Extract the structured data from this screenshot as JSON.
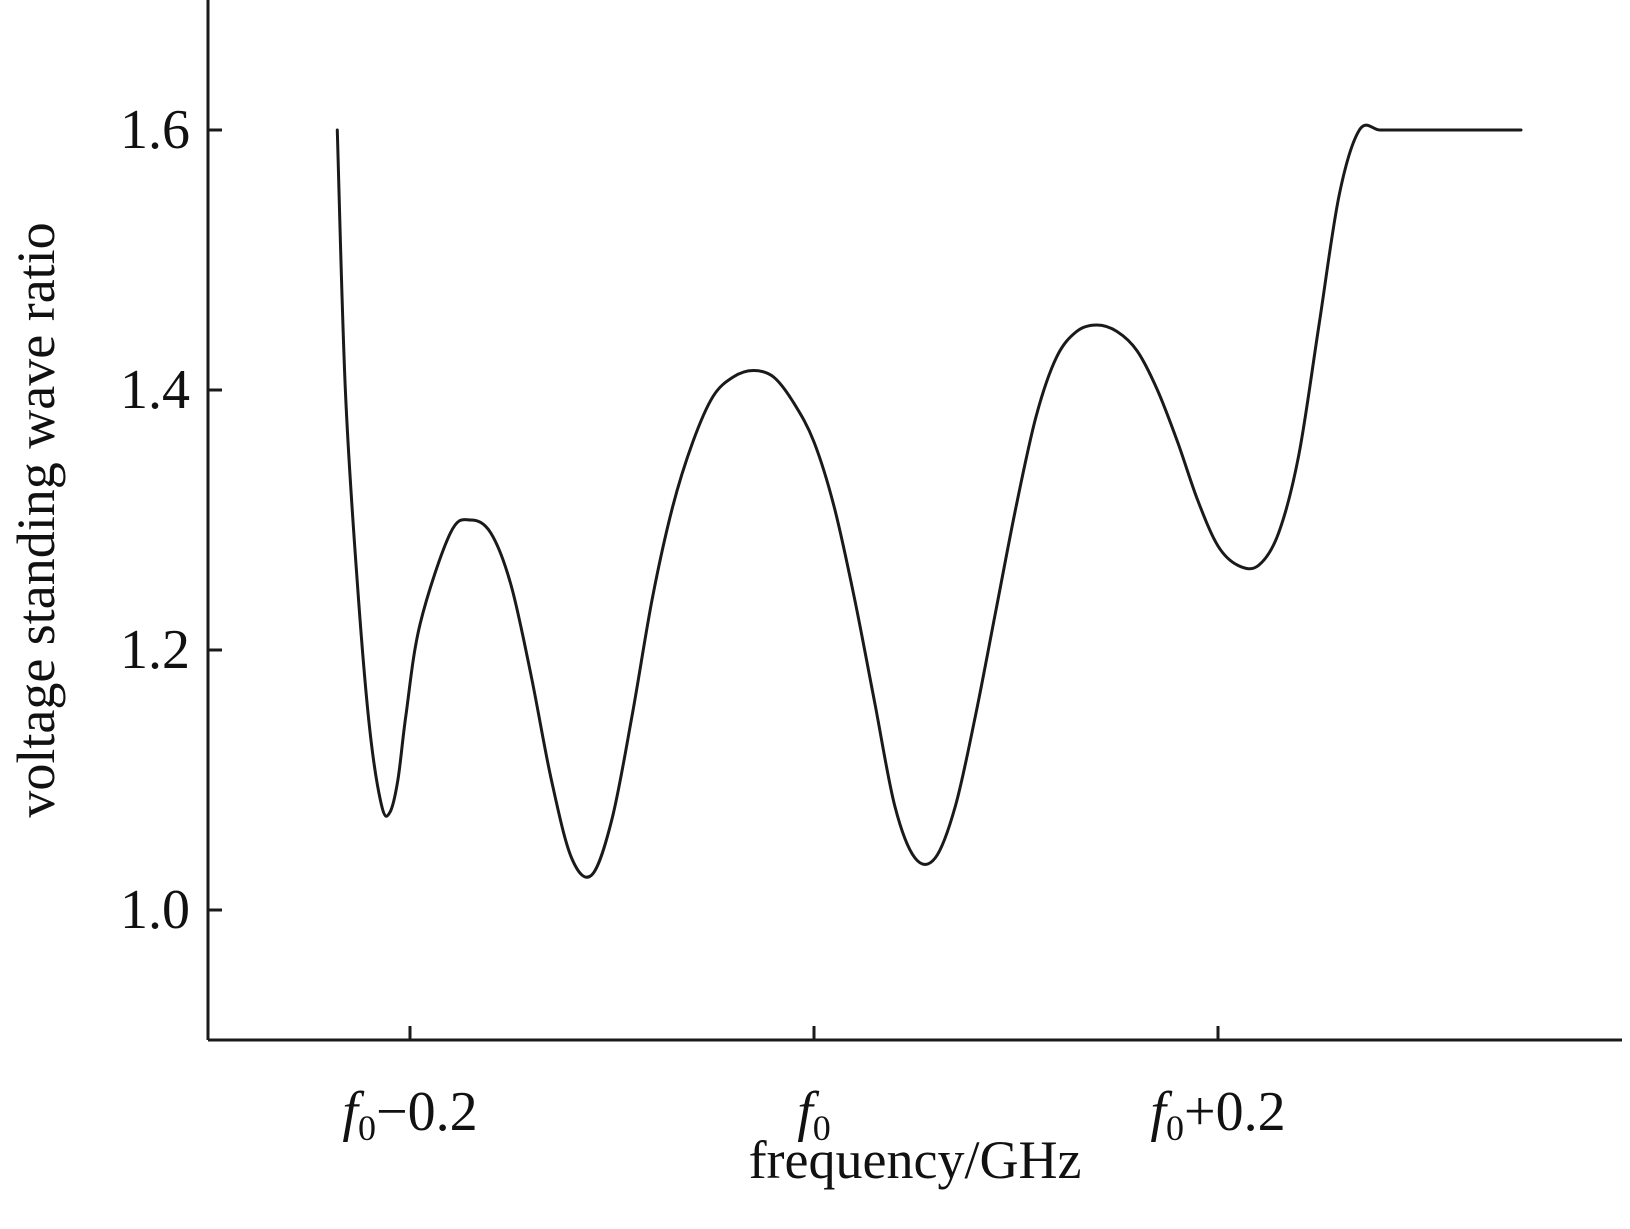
{
  "chart_data": {
    "type": "line",
    "title": "",
    "xlabel": "frequency/GHz",
    "ylabel": "voltage standing wave ratio",
    "xlim": [
      -0.3,
      0.4
    ],
    "ylim": [
      0.9,
      1.7
    ],
    "grid": false,
    "legend": "none",
    "xticks": [
      {
        "value": -0.2,
        "base": "f",
        "sub": "0",
        "suffix": "−0.2"
      },
      {
        "value": 0.0,
        "base": "f",
        "sub": "0",
        "suffix": ""
      },
      {
        "value": 0.2,
        "base": "f",
        "sub": "0",
        "suffix": "+0.2"
      }
    ],
    "yticks": [
      {
        "value": 1.0,
        "label": "1.0"
      },
      {
        "value": 1.2,
        "label": "1.2"
      },
      {
        "value": 1.4,
        "label": "1.4"
      },
      {
        "value": 1.6,
        "label": "1.6"
      }
    ],
    "series": [
      {
        "color": "#1a1a1a",
        "x": [
          -0.236,
          -0.232,
          -0.226,
          -0.22,
          -0.214,
          -0.21,
          -0.206,
          -0.202,
          -0.195,
          -0.18,
          -0.17,
          -0.16,
          -0.15,
          -0.14,
          -0.13,
          -0.12,
          -0.11,
          -0.1,
          -0.09,
          -0.08,
          -0.07,
          -0.06,
          -0.05,
          -0.04,
          -0.03,
          -0.02,
          -0.01,
          0.0,
          0.01,
          0.02,
          0.03,
          0.04,
          0.05,
          0.06,
          0.07,
          0.08,
          0.09,
          0.1,
          0.11,
          0.12,
          0.13,
          0.14,
          0.15,
          0.16,
          0.17,
          0.18,
          0.19,
          0.2,
          0.21,
          0.22,
          0.23,
          0.24,
          0.25,
          0.26,
          0.27,
          0.28,
          0.29,
          0.3,
          0.31,
          0.32,
          0.33,
          0.335,
          0.34,
          0.35
        ],
        "y": [
          1.6,
          1.4,
          1.25,
          1.14,
          1.08,
          1.075,
          1.1,
          1.15,
          1.22,
          1.29,
          1.3,
          1.29,
          1.25,
          1.18,
          1.1,
          1.04,
          1.027,
          1.07,
          1.15,
          1.24,
          1.31,
          1.36,
          1.395,
          1.41,
          1.415,
          1.41,
          1.39,
          1.36,
          1.31,
          1.24,
          1.16,
          1.08,
          1.04,
          1.04,
          1.08,
          1.15,
          1.23,
          1.31,
          1.38,
          1.425,
          1.445,
          1.45,
          1.445,
          1.43,
          1.4,
          1.36,
          1.315,
          1.28,
          1.265,
          1.265,
          1.29,
          1.35,
          1.45,
          1.55,
          1.6,
          1.6,
          1.6,
          1.6,
          1.6,
          1.6,
          1.6,
          1.6,
          1.6,
          1.6
        ]
      }
    ]
  }
}
